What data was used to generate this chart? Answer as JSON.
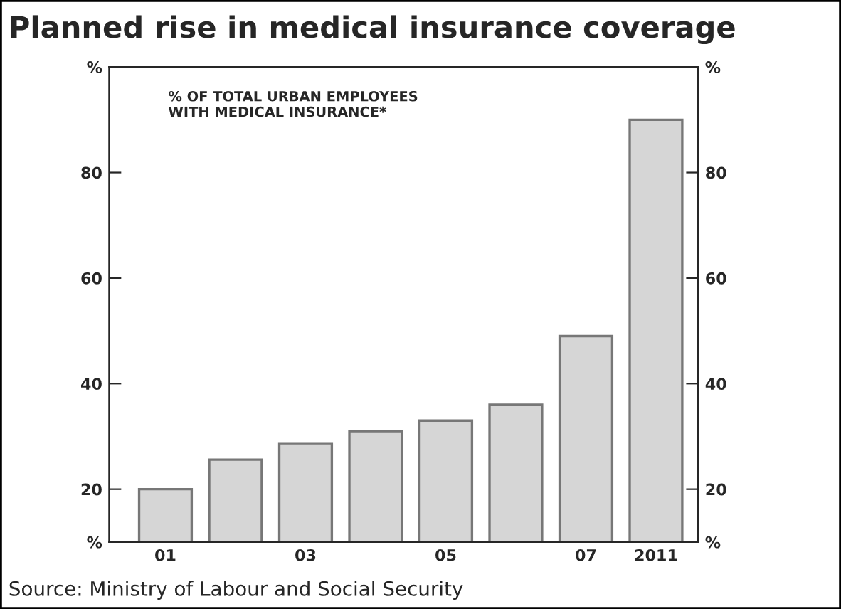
{
  "chart_data": {
    "type": "bar",
    "title": "Planned rise in medical insurance coverage",
    "annotations": [
      "% OF TOTAL URBAN EMPLOYEES\nWITH MEDICAL INSURANCE*",
      "Source: Ministry of Labour and Social Security"
    ],
    "categories": [
      "01",
      null,
      "03",
      null,
      "05",
      null,
      "07",
      "2011"
    ],
    "values": [
      20,
      25.6,
      28.7,
      31,
      33,
      36,
      49,
      90
    ],
    "color": "#d6d6d6",
    "ylim": [
      10,
      100
    ],
    "yticks": [
      {
        "value": 10,
        "label": "%"
      },
      20,
      40,
      60,
      80,
      {
        "value": 100,
        "label": "%"
      }
    ],
    "y2lim": [
      10,
      100
    ],
    "y2ticks": [
      {
        "value": 10,
        "label": "%"
      },
      20,
      40,
      60,
      80,
      {
        "value": 100,
        "label": "%"
      }
    ],
    "grid": false,
    "legend": false
  }
}
